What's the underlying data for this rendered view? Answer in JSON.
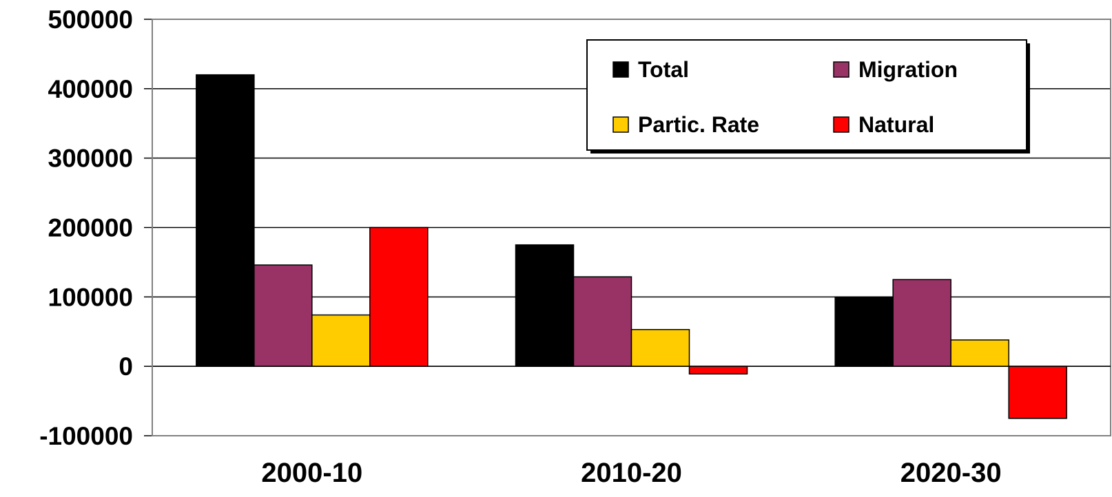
{
  "chart_data": {
    "type": "bar",
    "categories": [
      "2000-10",
      "2010-20",
      "2020-30"
    ],
    "series": [
      {
        "name": "Total",
        "color": "#000000",
        "values": [
          420000,
          175000,
          100000
        ]
      },
      {
        "name": "Migration",
        "color": "#993366",
        "values": [
          146000,
          129000,
          125000
        ]
      },
      {
        "name": "Partic. Rate",
        "color": "#FFCC00",
        "values": [
          74000,
          53000,
          38000
        ]
      },
      {
        "name": "Natural",
        "color": "#FF0000",
        "values": [
          200000,
          -11000,
          -75000
        ]
      }
    ],
    "ylim": [
      -100000,
      500000
    ],
    "yticks": [
      500000,
      400000,
      300000,
      200000,
      100000,
      0,
      -100000
    ],
    "ytick_labels": [
      "500000",
      "400000",
      "300000",
      "200000",
      "100000",
      "0",
      "-100000"
    ],
    "grid": true,
    "legend": {
      "position": "top-right",
      "columns": 2
    }
  }
}
